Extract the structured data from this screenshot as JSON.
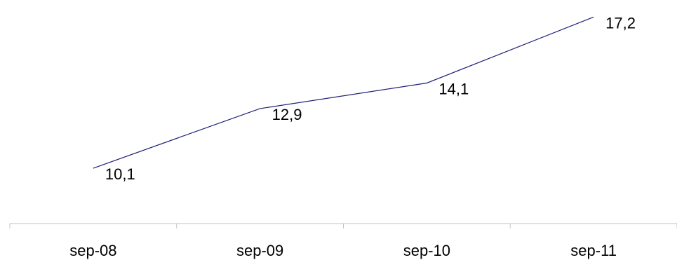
{
  "chart_data": {
    "type": "line",
    "categories": [
      "sep-08",
      "sep-09",
      "sep-10",
      "sep-11"
    ],
    "values": [
      10.1,
      12.9,
      14.1,
      17.2
    ],
    "data_labels": [
      "10,1",
      "12,9",
      "14,1",
      "17,2"
    ],
    "title": "",
    "xlabel": "",
    "ylabel": "",
    "ylim": [
      7.5,
      18
    ],
    "grid": false,
    "legend": "none",
    "line_color": "#1F1F7A",
    "axis_color": "#C0C0C0"
  }
}
